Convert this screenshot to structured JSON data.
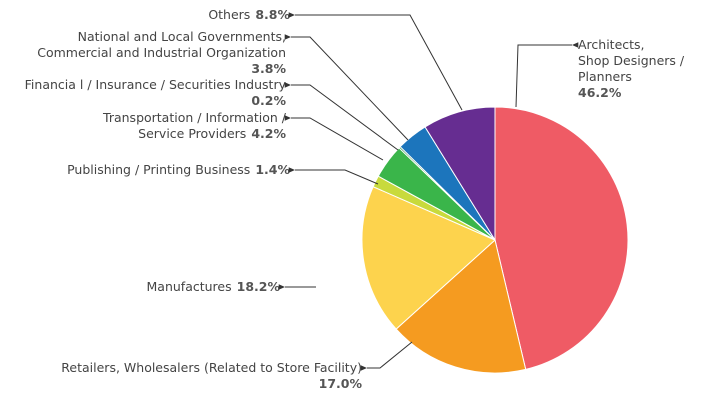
{
  "chart_data": {
    "type": "pie",
    "categories": [
      [
        "Architects,",
        "Shop Designers /",
        "Planners"
      ],
      [
        "Retailers, Wholesalers (Related to Store Facility)"
      ],
      [
        "Manufactures"
      ],
      [
        "Publishing / Printing Business"
      ],
      [
        "Transportation / Information /",
        "Service Providers"
      ],
      [
        "Financia l / Insurance / Securities Industry"
      ],
      [
        "National and Local Governments,",
        "Commercial and Industrial Organization"
      ],
      [
        "Others"
      ]
    ],
    "values": [
      46.2,
      17.0,
      18.2,
      1.4,
      4.2,
      0.2,
      3.8,
      8.8
    ],
    "value_labels": [
      "46.2%",
      "17.0%",
      "18.2%",
      "1.4%",
      "4.2%",
      "0.2%",
      "3.8%",
      "8.8%"
    ],
    "colors": [
      "#ef5b65",
      "#f59b20",
      "#fdd34d",
      "#c8da3c",
      "#3ab54a",
      "#1a7f3c",
      "#1c75bc",
      "#662d91"
    ]
  }
}
